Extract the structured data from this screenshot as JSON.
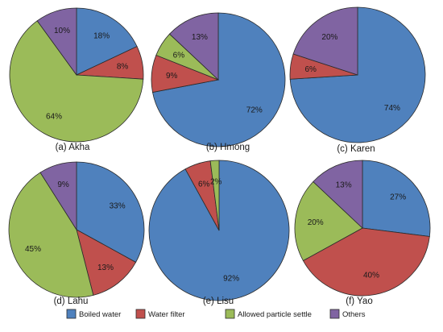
{
  "chart_data": [
    {
      "type": "pie",
      "caption": "(a) Akha",
      "categories": [
        "Boiled water",
        "Water filter",
        "Allowed particle settle",
        "Others"
      ],
      "values": [
        18,
        8,
        64,
        10
      ],
      "labels": [
        "18%",
        "8%",
        "64%",
        "10%"
      ]
    },
    {
      "type": "pie",
      "caption": "(b) Hmong",
      "categories": [
        "Boiled water",
        "Water filter",
        "Allowed particle settle",
        "Others"
      ],
      "values": [
        72,
        9,
        6,
        13
      ],
      "labels": [
        "72%",
        "9%",
        "6%",
        "13%"
      ]
    },
    {
      "type": "pie",
      "caption": "(c) Karen",
      "categories": [
        "Boiled water",
        "Water filter",
        "Allowed particle settle",
        "Others"
      ],
      "values": [
        74,
        6,
        0,
        20
      ],
      "labels": [
        "74%",
        "6%",
        "",
        "20%"
      ]
    },
    {
      "type": "pie",
      "caption": "(d) Lahu",
      "categories": [
        "Boiled water",
        "Water filter",
        "Allowed particle settle",
        "Others"
      ],
      "values": [
        33,
        13,
        45,
        9
      ],
      "labels": [
        "33%",
        "13%",
        "45%",
        "9%"
      ]
    },
    {
      "type": "pie",
      "caption": "(e) Lisu",
      "categories": [
        "Boiled water",
        "Water filter",
        "Allowed particle settle",
        "Others"
      ],
      "values": [
        92,
        6,
        2,
        0
      ],
      "labels": [
        "92%",
        "6%",
        "2%",
        ""
      ]
    },
    {
      "type": "pie",
      "caption": "(f) Yao",
      "categories": [
        "Boiled water",
        "Water filter",
        "Allowed particle settle",
        "Others"
      ],
      "values": [
        27,
        40,
        20,
        13
      ],
      "labels": [
        "27%",
        "40%",
        "20%",
        "13%"
      ]
    }
  ],
  "legend": {
    "placement": "bottom",
    "items": [
      {
        "label": "Boiled water",
        "color": "#4f81bd"
      },
      {
        "label": "Water filter",
        "color": "#c0504d"
      },
      {
        "label": "Allowed particle settle",
        "color": "#9bbb59"
      },
      {
        "label": "Others",
        "color": "#8064a2"
      }
    ]
  }
}
